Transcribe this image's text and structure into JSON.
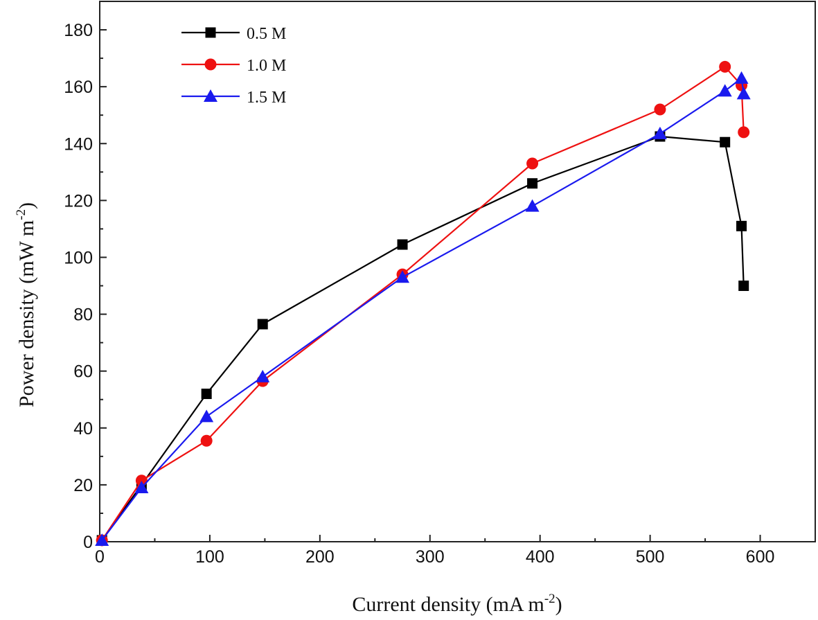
{
  "chart_data": {
    "type": "line",
    "title": "",
    "xlabel": {
      "main": "Current density (mA m",
      "sup": "-2",
      "close": ")"
    },
    "ylabel": {
      "main": "Power density (mW m",
      "sup": "-2",
      "close": ")"
    },
    "xlim": [
      0,
      650
    ],
    "ylim": [
      0,
      190
    ],
    "xticks": [
      0,
      100,
      200,
      300,
      400,
      500,
      600
    ],
    "yticks": [
      0,
      20,
      40,
      60,
      80,
      100,
      120,
      140,
      160,
      180
    ],
    "legend_position": "top-left",
    "series": [
      {
        "name": "0.5 M",
        "color": "#000000",
        "marker": "square",
        "points": [
          [
            2,
            0.5
          ],
          [
            38,
            20
          ],
          [
            97,
            52
          ],
          [
            148,
            76.5
          ],
          [
            275,
            104.5
          ],
          [
            393,
            126
          ],
          [
            509,
            142.5
          ],
          [
            568,
            140.5
          ],
          [
            583,
            111
          ],
          [
            585,
            90
          ]
        ]
      },
      {
        "name": "1.0 M",
        "color": "#ee1111",
        "marker": "circle",
        "points": [
          [
            2,
            0.5
          ],
          [
            38,
            21.5
          ],
          [
            97,
            35.5
          ],
          [
            148,
            56.5
          ],
          [
            275,
            94
          ],
          [
            393,
            133
          ],
          [
            509,
            152
          ],
          [
            568,
            167
          ],
          [
            583,
            160.5
          ],
          [
            585,
            144
          ]
        ]
      },
      {
        "name": "1.5 M",
        "color": "#1a1aee",
        "marker": "triangle",
        "points": [
          [
            2,
            0.5
          ],
          [
            38,
            19
          ],
          [
            97,
            44
          ],
          [
            148,
            58
          ],
          [
            275,
            93
          ],
          [
            393,
            118
          ],
          [
            509,
            143.5
          ],
          [
            568,
            158.5
          ],
          [
            583,
            163
          ],
          [
            585,
            157.5
          ]
        ]
      }
    ]
  }
}
